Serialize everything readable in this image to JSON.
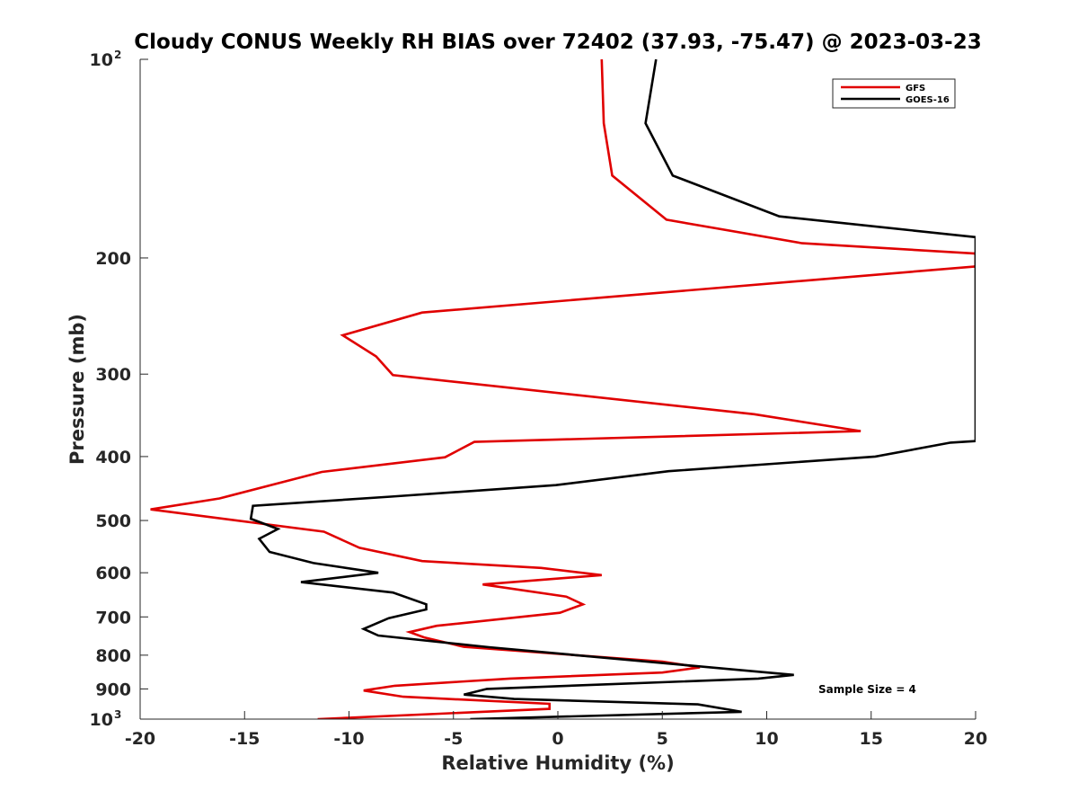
{
  "chart_data": {
    "type": "line",
    "title": "Cloudy CONUS Weekly RH BIAS over 72402 (37.93, -75.47) @ 2023-03-23",
    "xlabel": "Relative Humidity (%)",
    "ylabel": "Pressure (mb)",
    "xlim": [
      -20,
      20
    ],
    "ylim": [
      100,
      1000
    ],
    "y_scale": "log",
    "y_reversed": true,
    "x_ticks": [
      -20,
      -15,
      -10,
      -5,
      0,
      5,
      10,
      15,
      20
    ],
    "x_tick_labels": [
      "-20",
      "-15",
      "-10",
      "-5",
      "0",
      "5",
      "10",
      "15",
      "20"
    ],
    "y_ticks": [
      {
        "value": 100,
        "base": "10",
        "exp": "2"
      },
      {
        "value": 200,
        "label": "200"
      },
      {
        "value": 300,
        "label": "300"
      },
      {
        "value": 400,
        "label": "400"
      },
      {
        "value": 500,
        "label": "500"
      },
      {
        "value": 600,
        "label": "600"
      },
      {
        "value": 700,
        "label": "700"
      },
      {
        "value": 800,
        "label": "800"
      },
      {
        "value": 900,
        "label": "900"
      },
      {
        "value": 1000,
        "base": "10",
        "exp": "3"
      }
    ],
    "legend_position": "top-right",
    "annotation": "Sample Size = 4",
    "series": [
      {
        "name": "GFS",
        "color": "#e00000",
        "points": [
          [
            2.1,
            100
          ],
          [
            2.2,
            125
          ],
          [
            2.6,
            150
          ],
          [
            5.2,
            175
          ],
          [
            11.7,
            190
          ],
          [
            20.0,
            197
          ],
          [
            20.0,
            206
          ],
          [
            -6.5,
            242
          ],
          [
            -10.3,
            262
          ],
          [
            -8.7,
            282
          ],
          [
            -7.9,
            301
          ],
          [
            9.4,
            345
          ],
          [
            14.5,
            366
          ],
          [
            -4.0,
            380
          ],
          [
            -5.4,
            401
          ],
          [
            -11.3,
            422
          ],
          [
            -16.2,
            463
          ],
          [
            -19.5,
            481
          ],
          [
            -11.2,
            520
          ],
          [
            -9.5,
            550
          ],
          [
            -6.5,
            576
          ],
          [
            -0.8,
            590
          ],
          [
            2.1,
            605
          ],
          [
            -3.6,
            625
          ],
          [
            0.4,
            652
          ],
          [
            1.2,
            670
          ],
          [
            0.1,
            690
          ],
          [
            -5.8,
            722
          ],
          [
            -7.1,
            738
          ],
          [
            -6.4,
            752
          ],
          [
            -4.5,
            777
          ],
          [
            5.0,
            818
          ],
          [
            6.8,
            835
          ],
          [
            5.0,
            850
          ],
          [
            -2.3,
            868
          ],
          [
            -7.8,
            890
          ],
          [
            -9.3,
            905
          ],
          [
            -7.4,
            925
          ],
          [
            -0.4,
            948
          ],
          [
            -0.4,
            965
          ],
          [
            -11.5,
            1000
          ]
        ]
      },
      {
        "name": "GOES-16",
        "color": "#000000",
        "points": [
          [
            4.7,
            100
          ],
          [
            4.2,
            125
          ],
          [
            5.5,
            150
          ],
          [
            10.6,
            173
          ],
          [
            20.0,
            186
          ],
          [
            20.0,
            379
          ],
          [
            18.8,
            381
          ],
          [
            15.2,
            400
          ],
          [
            5.3,
            421
          ],
          [
            -0.1,
            442
          ],
          [
            -8.0,
            460
          ],
          [
            -14.6,
            475
          ],
          [
            -14.7,
            497
          ],
          [
            -13.4,
            515
          ],
          [
            -14.3,
            533
          ],
          [
            -13.8,
            558
          ],
          [
            -11.7,
            580
          ],
          [
            -8.6,
            600
          ],
          [
            -12.3,
            620
          ],
          [
            -7.9,
            643
          ],
          [
            -6.3,
            670
          ],
          [
            -6.3,
            682
          ],
          [
            -8.1,
            703
          ],
          [
            -9.3,
            730
          ],
          [
            -8.6,
            747
          ],
          [
            -3.3,
            778
          ],
          [
            8.6,
            842
          ],
          [
            11.3,
            857
          ],
          [
            9.6,
            868
          ],
          [
            -3.4,
            900
          ],
          [
            -4.5,
            918
          ],
          [
            -2.1,
            932
          ],
          [
            6.7,
            950
          ],
          [
            8.8,
            975
          ],
          [
            -4.2,
            1000
          ]
        ]
      }
    ]
  }
}
